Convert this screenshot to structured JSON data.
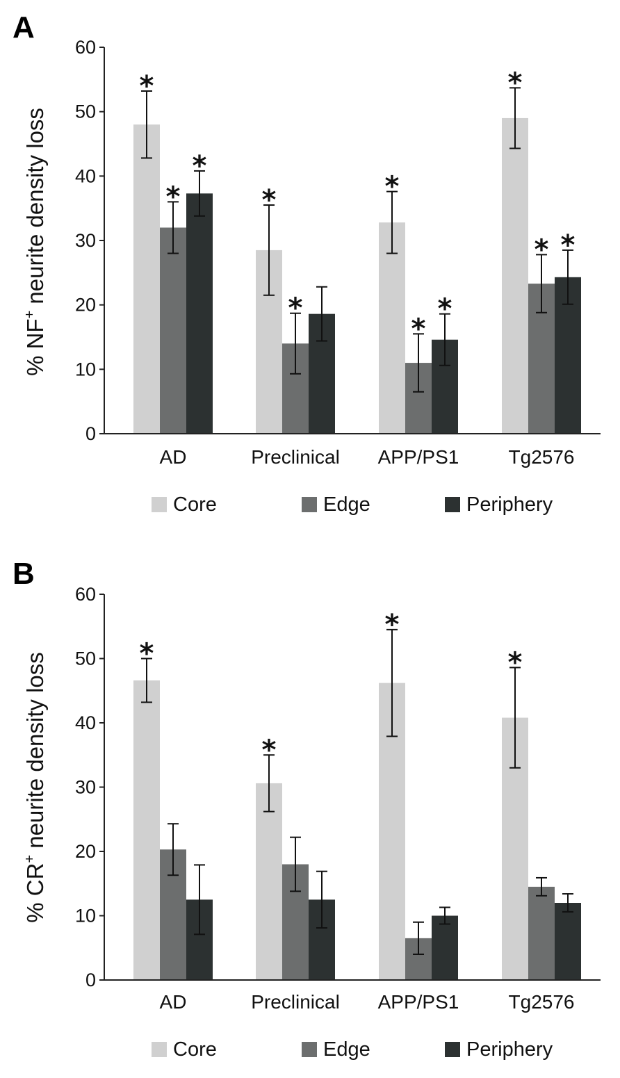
{
  "colors": {
    "Core": "#d0d0d0",
    "Edge": "#6c6e6e",
    "Periphery": "#2c3131",
    "axis": "#222222",
    "text": "#111111"
  },
  "chart_data": [
    {
      "panel": "A",
      "type": "bar",
      "ylabel_main": "% NF",
      "ylabel_sup": "+",
      "ylabel_rest": " neurite density loss",
      "xlabel": "",
      "ylim": [
        0,
        60
      ],
      "yticks": [
        0,
        10,
        20,
        30,
        40,
        50,
        60
      ],
      "categories": [
        "AD",
        "Preclinical",
        "APP/PS1",
        "Tg2576"
      ],
      "series": [
        {
          "name": "Core",
          "values": [
            48,
            28.5,
            32.8,
            49
          ],
          "errors": [
            5.2,
            7,
            4.8,
            4.7
          ],
          "significant": [
            true,
            true,
            true,
            true
          ]
        },
        {
          "name": "Edge",
          "values": [
            32,
            14,
            11,
            23.3
          ],
          "errors": [
            4,
            4.7,
            4.5,
            4.5
          ],
          "significant": [
            true,
            true,
            true,
            true
          ]
        },
        {
          "name": "Periphery",
          "values": [
            37.3,
            18.6,
            14.6,
            24.3
          ],
          "errors": [
            3.5,
            4.2,
            4,
            4.2
          ],
          "significant": [
            true,
            false,
            true,
            true
          ]
        }
      ],
      "legend": [
        "Core",
        "Edge",
        "Periphery"
      ],
      "significance_marker": "*"
    },
    {
      "panel": "B",
      "type": "bar",
      "ylabel_main": "% CR",
      "ylabel_sup": "+",
      "ylabel_rest": " neurite density loss",
      "xlabel": "",
      "ylim": [
        0,
        60
      ],
      "yticks": [
        0,
        10,
        20,
        30,
        40,
        50,
        60
      ],
      "categories": [
        "AD",
        "Preclinical",
        "APP/PS1",
        "Tg2576"
      ],
      "series": [
        {
          "name": "Core",
          "values": [
            46.6,
            30.6,
            46.2,
            40.8
          ],
          "errors": [
            3.4,
            4.4,
            8.3,
            7.8
          ],
          "significant": [
            true,
            true,
            true,
            true
          ]
        },
        {
          "name": "Edge",
          "values": [
            20.3,
            18,
            6.5,
            14.5
          ],
          "errors": [
            4,
            4.2,
            2.5,
            1.4
          ],
          "significant": [
            false,
            false,
            false,
            false
          ]
        },
        {
          "name": "Periphery",
          "values": [
            12.5,
            12.5,
            10,
            12
          ],
          "errors": [
            5.4,
            4.4,
            1.3,
            1.4
          ],
          "significant": [
            false,
            false,
            false,
            false
          ]
        }
      ],
      "legend": [
        "Core",
        "Edge",
        "Periphery"
      ],
      "significance_marker": "*"
    }
  ]
}
